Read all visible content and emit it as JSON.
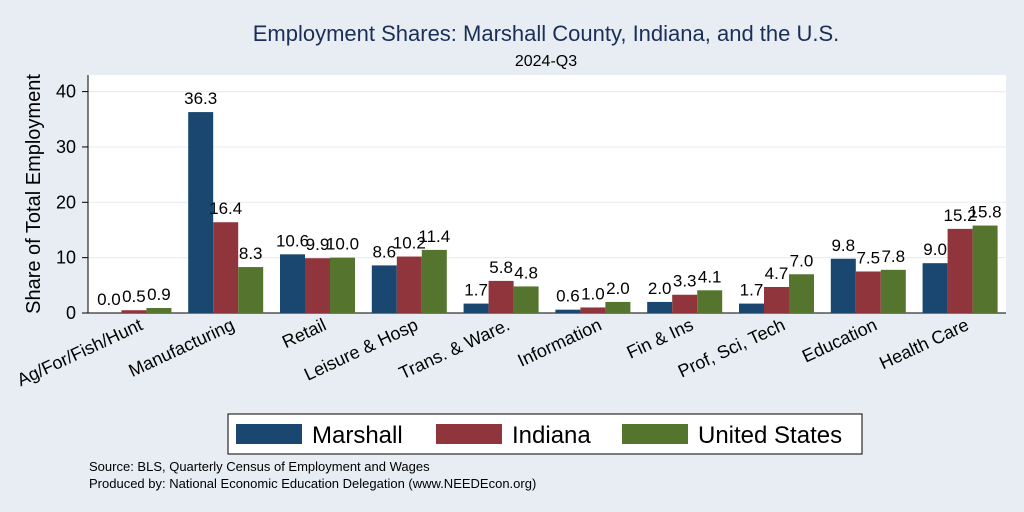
{
  "chart_data": {
    "type": "bar",
    "title": "Employment Shares: Marshall County, Indiana, and the U.S.",
    "subtitle": "2024-Q3",
    "ylabel": "Share of Total Employment",
    "xlabel": "",
    "ylim": [
      0,
      43
    ],
    "yticks": [
      0,
      10,
      20,
      30,
      40
    ],
    "grid": true,
    "legend_position": "bottom",
    "categories": [
      "Ag/For/Fish/Hunt",
      "Manufacturing",
      "Retail",
      "Leisure & Hosp",
      "Trans. & Ware.",
      "Information",
      "Fin & Ins",
      "Prof, Sci, Tech",
      "Education",
      "Health Care"
    ],
    "series": [
      {
        "name": "Marshall",
        "color": "#1a476f",
        "values": [
          0.0,
          36.3,
          10.6,
          8.6,
          1.7,
          0.6,
          2.0,
          1.7,
          9.8,
          9.0
        ],
        "labels": [
          "0.0",
          "36.3",
          "10.6",
          "8.6",
          "1.7",
          "0.6",
          "2.0",
          "1.7",
          "9.8",
          "9.0"
        ]
      },
      {
        "name": "Indiana",
        "color": "#90353b",
        "values": [
          0.5,
          16.4,
          9.9,
          10.2,
          5.8,
          1.0,
          3.3,
          4.7,
          7.5,
          15.2
        ],
        "labels": [
          "0.5",
          "16.4",
          "9.9",
          "10.2",
          "5.8",
          "1.0",
          "3.3",
          "4.7",
          "7.5",
          "15.2"
        ]
      },
      {
        "name": "United States",
        "color": "#55752f",
        "values": [
          0.9,
          8.3,
          10.0,
          11.4,
          4.8,
          2.0,
          4.1,
          7.0,
          7.8,
          15.8
        ],
        "labels": [
          "0.9",
          "8.3",
          "10.0",
          "11.4",
          "4.8",
          "2.0",
          "4.1",
          "7.0",
          "7.8",
          "15.8"
        ]
      }
    ]
  },
  "source_lines": [
    "Source: BLS, Quarterly Census of Employment and Wages",
    "Produced by: National Economic Education Delegation (www.NEEDEcon.org)"
  ]
}
